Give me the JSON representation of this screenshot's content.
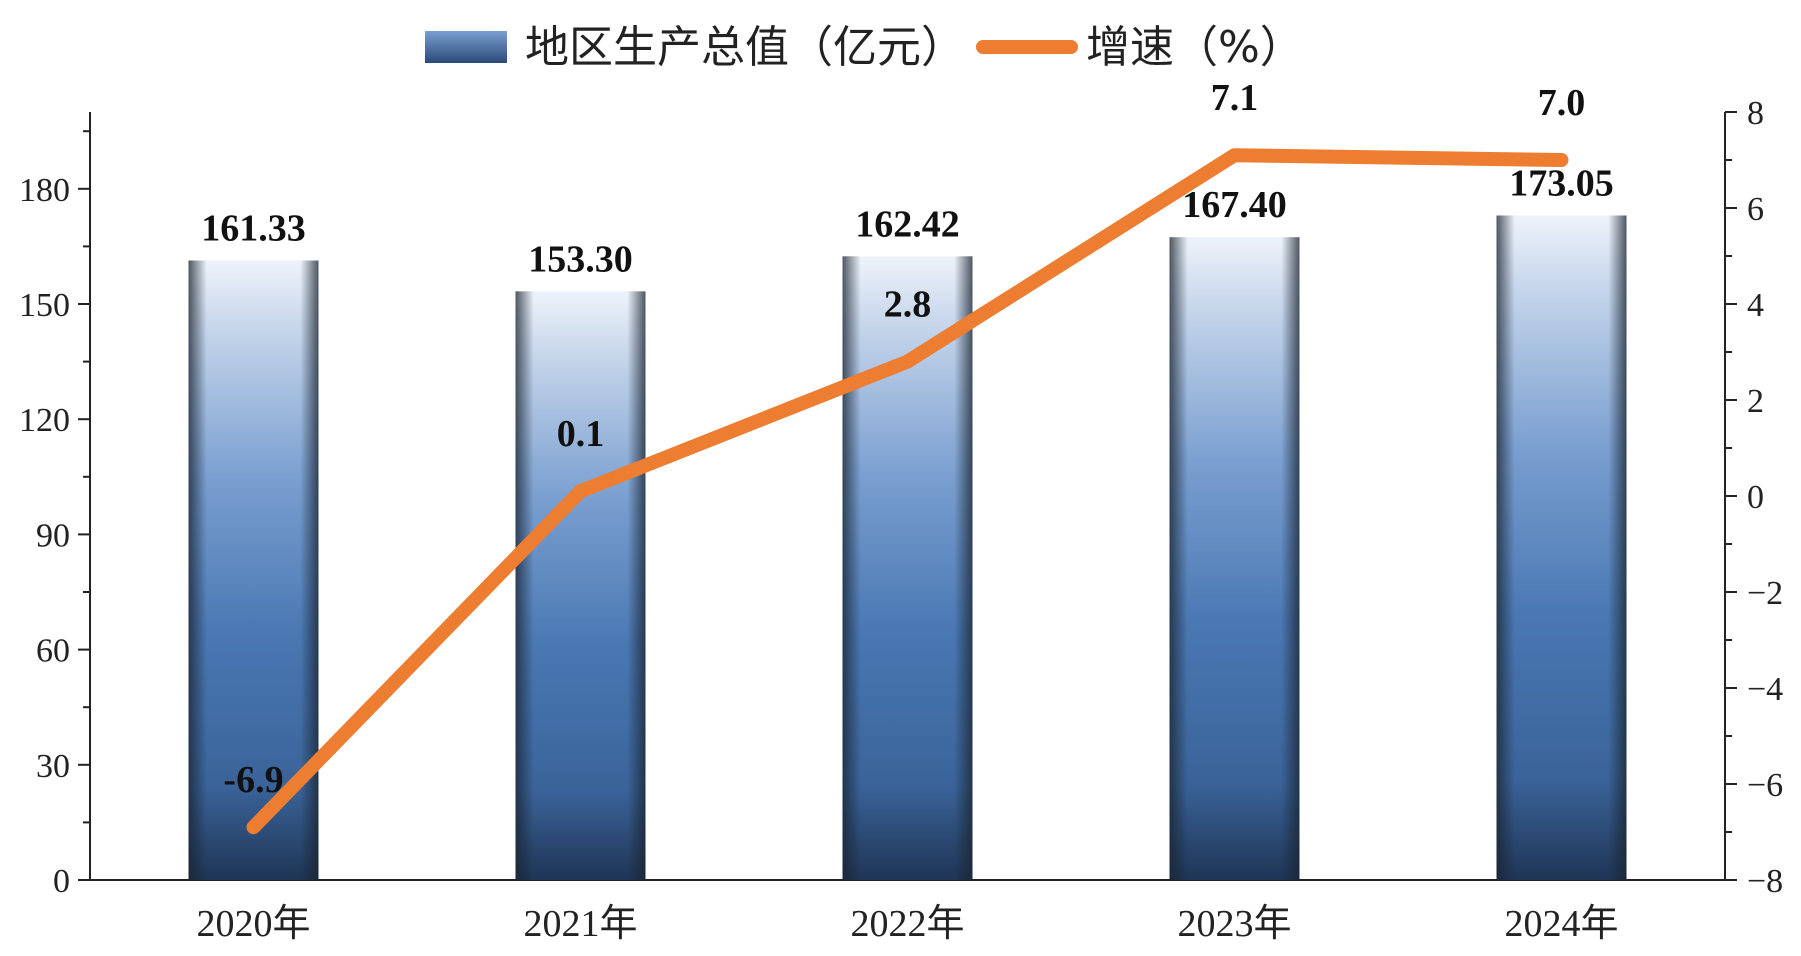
{
  "chart_data": {
    "type": "bar",
    "categories": [
      "2020年",
      "2021年",
      "2022年",
      "2023年",
      "2024年"
    ],
    "series": [
      {
        "name": "地区生产总值（亿元）",
        "type": "bar",
        "axis": "left",
        "values": [
          161.33,
          153.3,
          162.42,
          167.4,
          173.05
        ],
        "labels": [
          "161.33",
          "153.30",
          "162.42",
          "167.40",
          "173.05"
        ],
        "color": "#4a78b3"
      },
      {
        "name": "增速（%）",
        "type": "line",
        "axis": "right",
        "values": [
          -6.9,
          0.1,
          2.8,
          7.1,
          7.0
        ],
        "labels": [
          "-6.9",
          "0.1",
          "2.8",
          "7.1",
          "7.0"
        ],
        "color": "#ed7d31"
      }
    ],
    "y_left": {
      "min": 0,
      "max": 200,
      "major_step": 30,
      "minor_step": 15,
      "ticks": [
        0,
        30,
        60,
        90,
        120,
        150,
        180
      ],
      "tick_labels": [
        "0",
        "30",
        "60",
        "90",
        "120",
        "150",
        "180"
      ]
    },
    "y_right": {
      "min": -8,
      "max": 8,
      "major_step": 2,
      "minor_step": 1,
      "ticks": [
        -8,
        -6,
        -4,
        -2,
        0,
        2,
        4,
        6,
        8
      ],
      "tick_labels": [
        "−8",
        "−6",
        "−4",
        "−2",
        "0",
        "2",
        "4",
        "6",
        "8"
      ]
    },
    "legend_position": "top-center",
    "grid": false
  }
}
